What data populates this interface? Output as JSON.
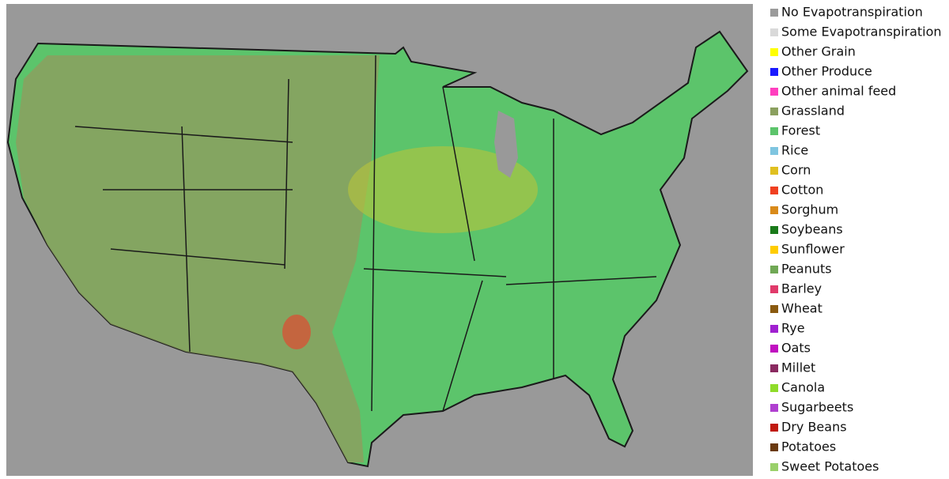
{
  "legend": {
    "items": [
      {
        "label": "No Evapotranspiration",
        "color": "#9b9b9b"
      },
      {
        "label": "Some Evapotranspiration",
        "color": "#d9d9d9"
      },
      {
        "label": "Other Grain",
        "color": "#ffff00"
      },
      {
        "label": "Other Produce",
        "color": "#1a1aff"
      },
      {
        "label": "Other animal feed",
        "color": "#ff3fbf"
      },
      {
        "label": "Grassland",
        "color": "#8ba05f"
      },
      {
        "label": "Forest",
        "color": "#5cc46b"
      },
      {
        "label": "Rice",
        "color": "#7fc5e0"
      },
      {
        "label": "Corn",
        "color": "#e0c020"
      },
      {
        "label": "Cotton",
        "color": "#f04020"
      },
      {
        "label": "Sorghum",
        "color": "#d98a1a"
      },
      {
        "label": "Soybeans",
        "color": "#1a7a1a"
      },
      {
        "label": "Sunflower",
        "color": "#ffcc00"
      },
      {
        "label": "Peanuts",
        "color": "#70a855"
      },
      {
        "label": "Barley",
        "color": "#e03a6a"
      },
      {
        "label": "Wheat",
        "color": "#8a5a10"
      },
      {
        "label": "Rye",
        "color": "#a020d0"
      },
      {
        "label": "Oats",
        "color": "#c010c0"
      },
      {
        "label": "Millet",
        "color": "#8a2a60"
      },
      {
        "label": "Canola",
        "color": "#8fdc2a"
      },
      {
        "label": "Sugarbeets",
        "color": "#b040d0"
      },
      {
        "label": "Dry Beans",
        "color": "#c01a10"
      },
      {
        "label": "Potatoes",
        "color": "#6a3a10"
      },
      {
        "label": "Sweet Potatoes",
        "color": "#9ad06a"
      }
    ]
  }
}
